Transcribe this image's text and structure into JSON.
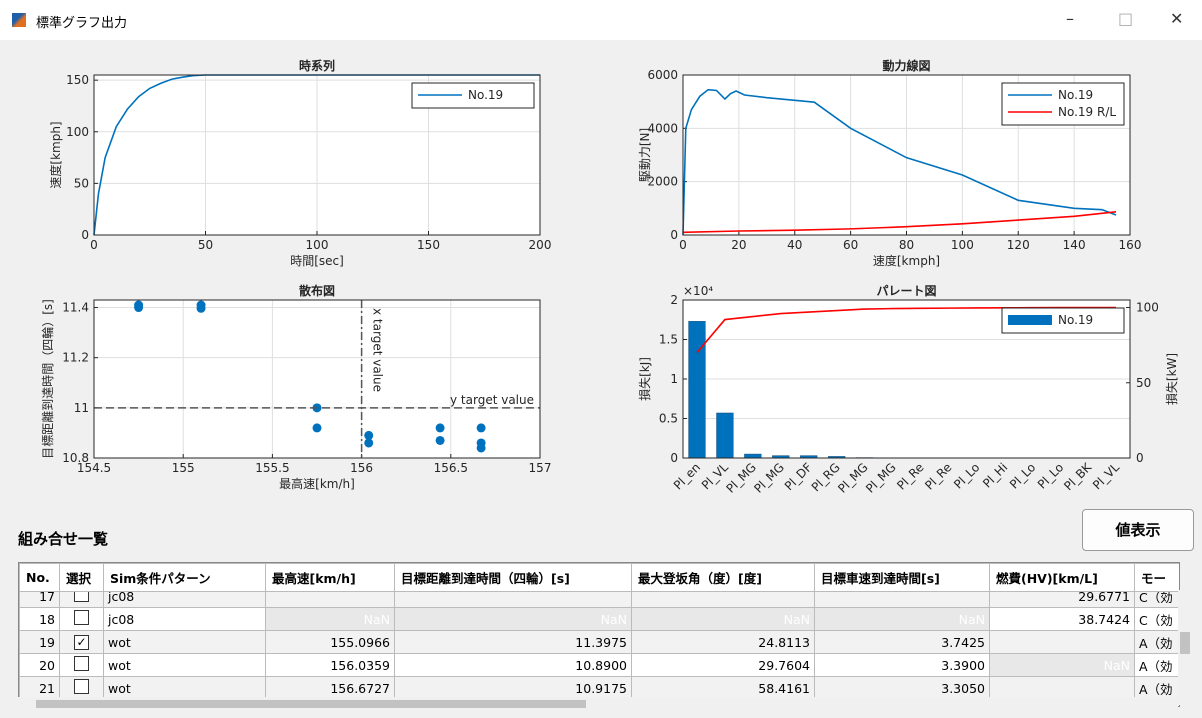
{
  "window": {
    "title": "標準グラフ出力"
  },
  "chart_data": [
    {
      "type": "line",
      "title": "時系列",
      "xlabel": "時間[sec]",
      "ylabel": "速度[kmph]",
      "x": [
        0,
        2,
        5,
        10,
        15,
        20,
        25,
        30,
        35,
        40,
        45,
        50,
        200
      ],
      "series": [
        {
          "name": "No.19",
          "color": "#0072bd",
          "values": [
            0,
            40,
            75,
            105,
            122,
            134,
            142,
            147,
            151,
            153,
            154.5,
            155,
            155
          ]
        }
      ],
      "xlim": [
        0,
        200
      ],
      "xticks": [
        0,
        50,
        100,
        150,
        200
      ],
      "ylim": [
        0,
        155
      ],
      "yticks": [
        0,
        50,
        100,
        150
      ],
      "grid": true,
      "legend": "upper right"
    },
    {
      "type": "line",
      "title": "動力線図",
      "xlabel": "速度[kmph]",
      "ylabel": "駆動力[N]",
      "series": [
        {
          "name": "No.19",
          "color": "#0072bd",
          "x": [
            0,
            1,
            3,
            6,
            9,
            12,
            15,
            17,
            19,
            22,
            30,
            40,
            47,
            60,
            80,
            100,
            120,
            140,
            150,
            155
          ],
          "values": [
            0,
            4000,
            4700,
            5200,
            5450,
            5420,
            5100,
            5300,
            5400,
            5250,
            5150,
            5050,
            4980,
            4000,
            2900,
            2250,
            1300,
            1000,
            950,
            750
          ]
        },
        {
          "name": "No.19 R/L",
          "color": "#ff0000",
          "x": [
            0,
            20,
            40,
            60,
            80,
            100,
            120,
            140,
            155
          ],
          "values": [
            100,
            150,
            180,
            230,
            310,
            420,
            560,
            700,
            870
          ]
        }
      ],
      "xlim": [
        0,
        160
      ],
      "xticks": [
        0,
        20,
        40,
        60,
        80,
        100,
        120,
        140,
        160
      ],
      "ylim": [
        0,
        6000
      ],
      "yticks": [
        0,
        2000,
        4000,
        6000
      ],
      "grid": true,
      "legend": "upper right"
    },
    {
      "type": "scatter",
      "title": "散布図",
      "xlabel": "最高速[km/h]",
      "ylabel": "目標距離到達時間（四輪）[s]",
      "color": "#0072bd",
      "x": [
        154.75,
        154.75,
        155.1,
        155.1,
        155.75,
        155.75,
        156.04,
        156.04,
        156.44,
        156.44,
        156.67,
        156.67,
        156.67
      ],
      "values": [
        11.41,
        11.4,
        11.41,
        11.397,
        11.0,
        10.92,
        10.89,
        10.86,
        10.92,
        10.87,
        10.92,
        10.86,
        10.84
      ],
      "reference_lines": [
        {
          "axis": "x",
          "value": 156,
          "label": "x target value"
        },
        {
          "axis": "y",
          "value": 11,
          "label": "y target value"
        }
      ],
      "xlim": [
        154.5,
        157
      ],
      "xticks": [
        154.5,
        155,
        155.5,
        156,
        156.5,
        157
      ],
      "ylim": [
        10.8,
        11.43
      ],
      "yticks": [
        10.8,
        11,
        11.2,
        11.4
      ],
      "grid": true
    },
    {
      "type": "pareto",
      "title": "パレート図",
      "ylabel": "損失[kJ]",
      "y2label": "損失[kW]",
      "ymultiplier": "×10⁴",
      "categories": [
        "Pl_en",
        "Pl_VL",
        "Pl_MG",
        "Pl_MG",
        "Pl_DF",
        "Pl_RG",
        "Pl_MG",
        "Pl_MG",
        "Pl_Re",
        "Pl_Re",
        "Pl_Lo",
        "Pl_Hi",
        "Pl_Lo",
        "Pl_Lo",
        "Pl_BK",
        "Pl_VL"
      ],
      "series": [
        {
          "name": "No.19",
          "color": "#0072bd",
          "values": [
            1.73,
            0.57,
            0.05,
            0.03,
            0.03,
            0.02,
            0.005,
            0.003,
            0.002,
            0.001,
            0,
            0,
            0,
            0,
            0,
            0
          ]
        },
        {
          "color": "#ff0000",
          "axis": "y2",
          "values": [
            70,
            92,
            94,
            96,
            97,
            98,
            99,
            99.3,
            99.5,
            99.6,
            99.7,
            99.8,
            99.9,
            100,
            100,
            100
          ]
        }
      ],
      "ylim": [
        0,
        2
      ],
      "yticks": [
        0,
        0.5,
        1,
        1.5,
        2
      ],
      "y2lim": [
        0,
        105
      ],
      "y2ticks": [
        0,
        50,
        100
      ],
      "grid": true,
      "legend": "upper right"
    }
  ],
  "list_title": "組み合せ一覧",
  "button": "値表示",
  "table": {
    "columns": [
      "No.",
      "選択",
      "Sim条件パターン",
      "最高速[km/h]",
      "目標距離到達時間（四輪）[s]",
      "最大登坂角（度）[度]",
      "目標車速到達時間[s]",
      "燃費(HV)[km/L]",
      "モー"
    ],
    "rows": [
      {
        "selected": false,
        "cells": [
          "17",
          "jc08",
          "",
          "",
          "",
          "",
          "29.6771",
          "C（効"
        ]
      },
      {
        "selected": false,
        "cells": [
          "18",
          "jc08",
          "NaN",
          "NaN",
          "NaN",
          "NaN",
          "38.7424",
          "C（効"
        ]
      },
      {
        "selected": true,
        "cells": [
          "19",
          "wot",
          "155.0966",
          "11.3975",
          "24.8113",
          "3.7425",
          "",
          "A（効"
        ]
      },
      {
        "selected": false,
        "cells": [
          "20",
          "wot",
          "156.0359",
          "10.8900",
          "29.7604",
          "3.3900",
          "NaN",
          "A（効"
        ]
      },
      {
        "selected": false,
        "cells": [
          "21",
          "wot",
          "156.6727",
          "10.9175",
          "58.4161",
          "3.3050",
          "",
          "A（効"
        ]
      }
    ]
  }
}
